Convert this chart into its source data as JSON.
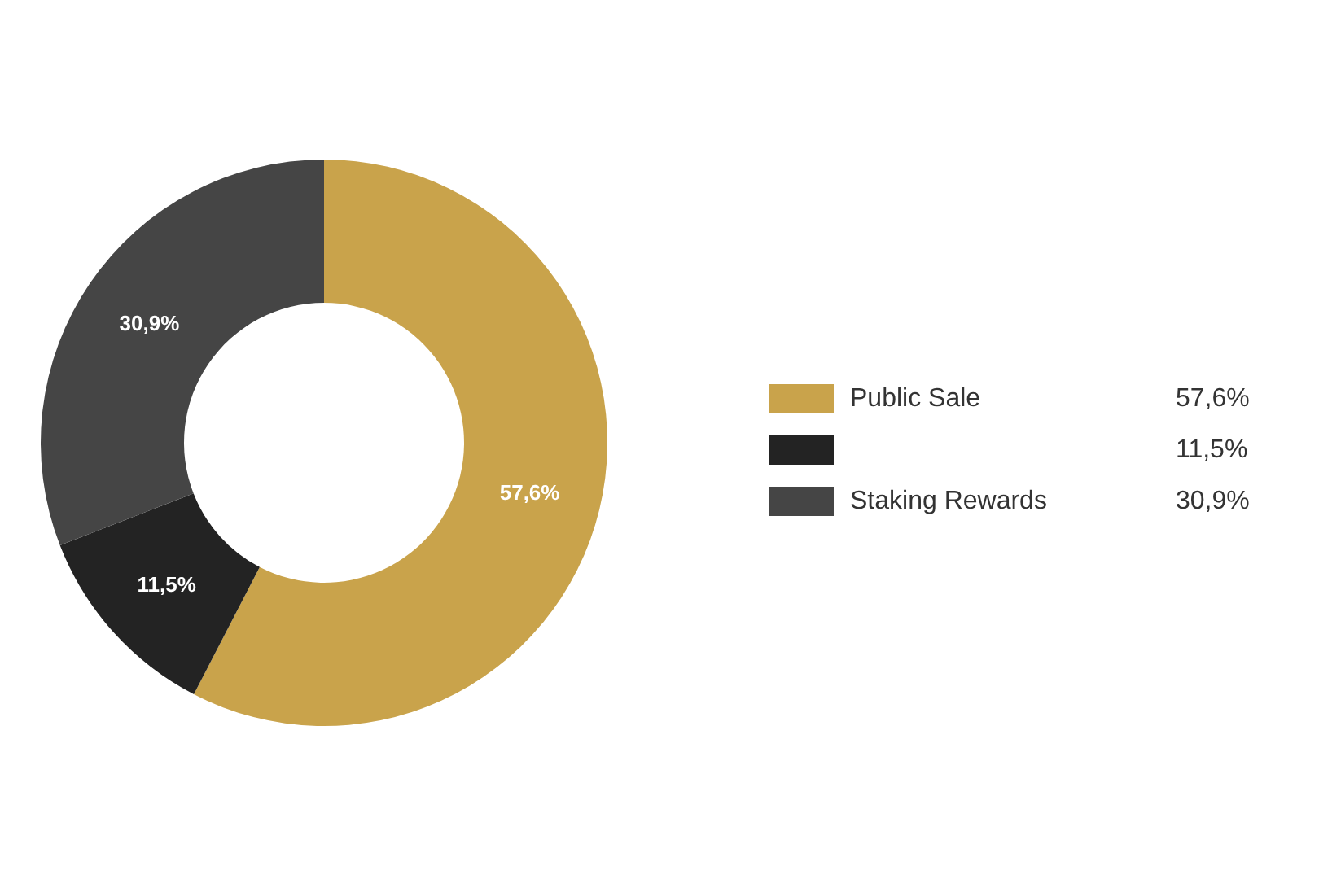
{
  "chart_data": {
    "type": "donut",
    "categories": [
      "Public Sale",
      null,
      "Staking Rewards"
    ],
    "values": [
      57.6,
      11.5,
      30.9
    ],
    "colors": [
      "#c9a34b",
      "#232323",
      "#454545"
    ],
    "value_labels": [
      "57,6%",
      "11,5%",
      "30,9%"
    ],
    "legend": "right"
  }
}
